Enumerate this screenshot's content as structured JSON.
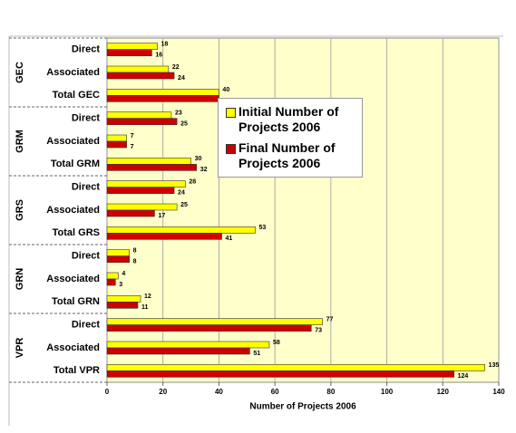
{
  "chart_data": {
    "type": "bar",
    "orientation": "horizontal",
    "groups": [
      {
        "name": "GEC",
        "categories": [
          "Direct",
          "Associated",
          "Total GEC"
        ]
      },
      {
        "name": "GRM",
        "categories": [
          "Direct",
          "Associated",
          "Total GRM"
        ]
      },
      {
        "name": "GRS",
        "categories": [
          "Direct",
          "Associated",
          "Total GRS"
        ]
      },
      {
        "name": "GRN",
        "categories": [
          "Direct",
          "Associated",
          "Total GRN"
        ]
      },
      {
        "name": "VPR",
        "categories": [
          "Direct",
          "Associated",
          "Total VPR"
        ]
      }
    ],
    "series": [
      {
        "name": "Initial Number of Projects 2006",
        "color": "#ffff00",
        "values": [
          18,
          22,
          40,
          23,
          7,
          30,
          28,
          25,
          53,
          8,
          4,
          12,
          77,
          58,
          135
        ]
      },
      {
        "name": "Final Number of Projects  2006",
        "color": "#cc0000",
        "values": [
          16,
          24,
          40,
          25,
          7,
          32,
          24,
          17,
          41,
          8,
          3,
          11,
          73,
          51,
          124
        ]
      }
    ],
    "xlabel": "Number of Projects 2006",
    "xlim": [
      0,
      140
    ],
    "xticks": [
      0,
      20,
      40,
      60,
      80,
      100,
      120,
      140
    ],
    "grid": true
  }
}
